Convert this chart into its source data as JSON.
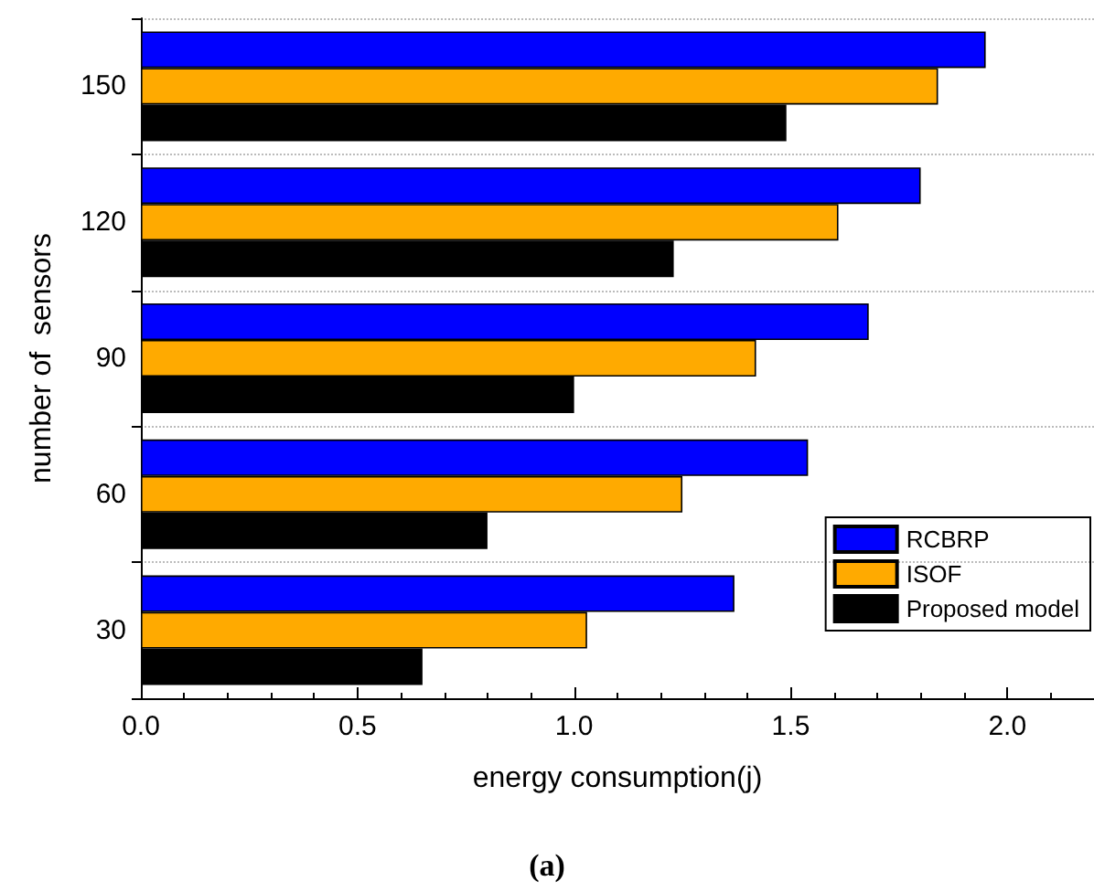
{
  "chart_data": {
    "type": "bar",
    "orientation": "horizontal",
    "categories": [
      "150",
      "120",
      "90",
      "60",
      "30"
    ],
    "series": [
      {
        "name": "RCBRP",
        "color": "#0000ff",
        "values": [
          1.95,
          1.8,
          1.68,
          1.54,
          1.37
        ]
      },
      {
        "name": "ISOF",
        "color": "#ffaa00",
        "values": [
          1.84,
          1.61,
          1.42,
          1.25,
          1.03
        ]
      },
      {
        "name": "Proposed model",
        "color": "#000000",
        "values": [
          1.49,
          1.23,
          1.0,
          0.8,
          0.65
        ]
      }
    ],
    "xlim": [
      0,
      2.2
    ],
    "xticks": [
      {
        "value": 0,
        "label": "0.0"
      },
      0.5,
      {
        "value": 1,
        "label": "1.0"
      },
      1.5,
      {
        "value": 2,
        "label": "2.0"
      }
    ],
    "xlabel": "energy consumption(j)",
    "ylabel": "number of  sensors",
    "annotations": [
      "(a)"
    ],
    "grid": "y",
    "legend": "bottom right"
  }
}
